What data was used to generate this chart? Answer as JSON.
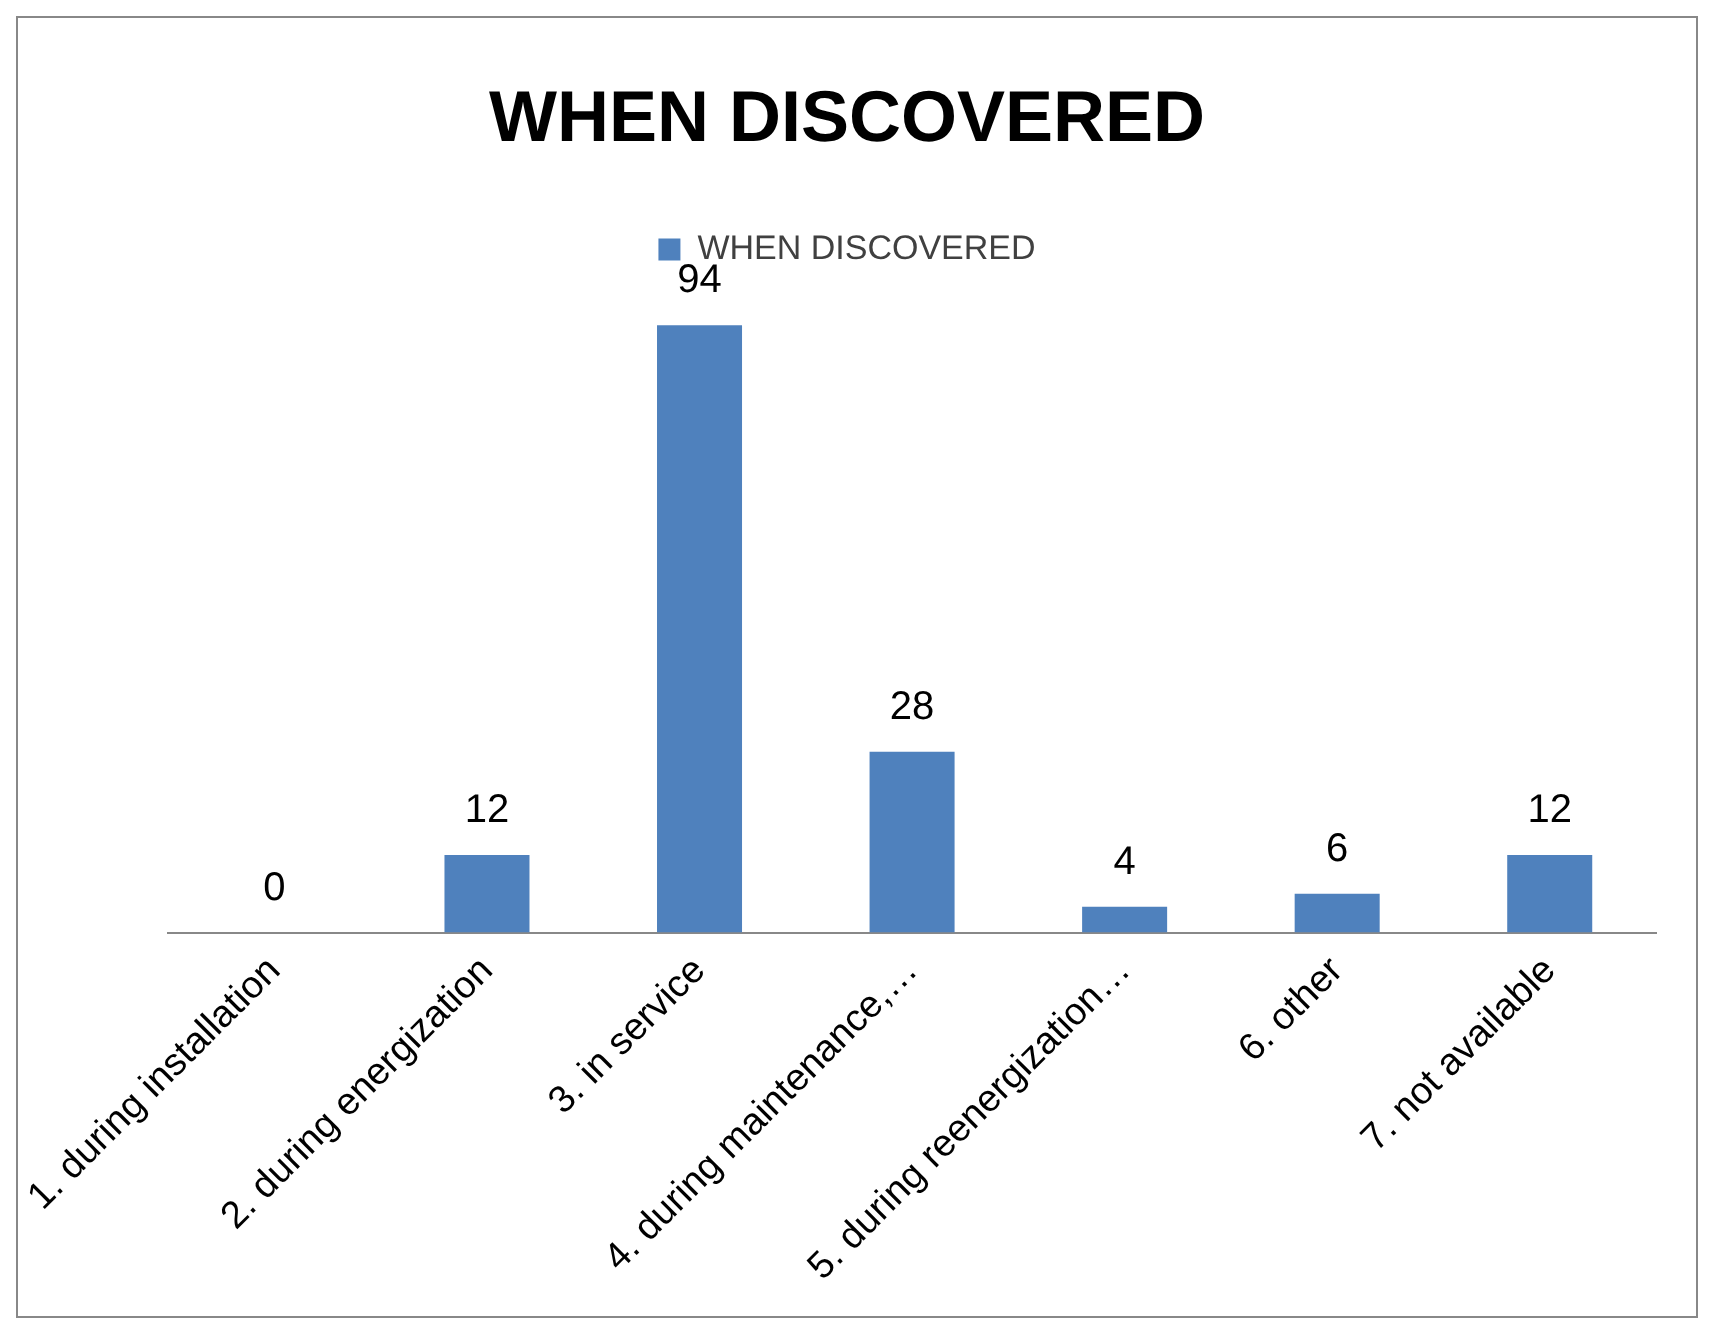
{
  "chart_data": {
    "type": "bar",
    "title": "WHEN DISCOVERED",
    "categories": [
      "1. during installation",
      "2. during energization",
      "3. in service",
      "4. during maintenance,…",
      "5. during reenergization…",
      "6. other",
      "7. not available"
    ],
    "series": [
      {
        "name": "WHEN DISCOVERED",
        "color": "#4f81bd",
        "values": [
          0,
          12,
          94,
          28,
          4,
          6,
          12
        ]
      }
    ],
    "data_labels": true,
    "legend": "top",
    "grid": false
  }
}
